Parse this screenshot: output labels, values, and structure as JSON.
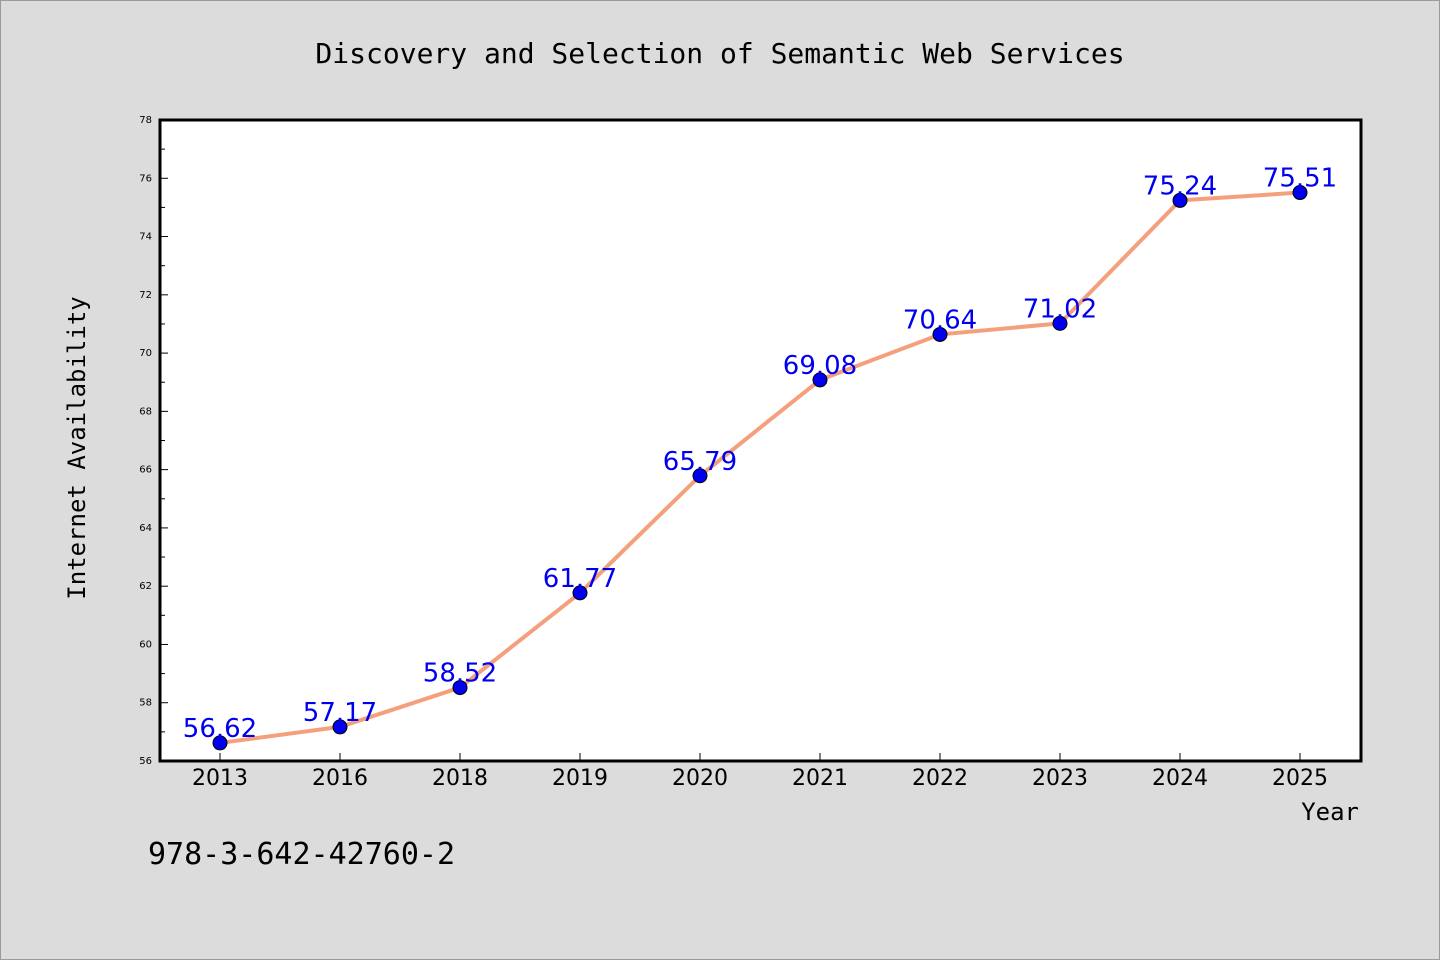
{
  "chart_data": {
    "type": "line",
    "title": "Discovery and Selection of Semantic Web Services",
    "xlabel": "Year",
    "ylabel": "Internet Availability",
    "categories": [
      "2013",
      "2016",
      "2018",
      "2019",
      "2020",
      "2021",
      "2022",
      "2023",
      "2024",
      "2025"
    ],
    "series": [
      {
        "values": [
          56.62,
          57.17,
          58.52,
          61.77,
          65.79,
          69.08,
          70.64,
          71.02,
          75.24,
          75.51
        ]
      }
    ],
    "data_labels": [
      "56.62",
      "57.17",
      "58.52",
      "61.77",
      "65.79",
      "69.08",
      "70.64",
      "71.02",
      "75.24",
      "75.51"
    ],
    "ylim": [
      56,
      78
    ],
    "yticks": [
      56,
      58,
      60,
      62,
      64,
      66,
      68,
      70,
      72,
      74,
      76,
      78
    ],
    "grid": false,
    "line_color": "#f4a07c",
    "marker_color": "#0000ee",
    "label_color": "#0000ee",
    "background_color": "#dcdcdc",
    "plot_background": "#ffffff"
  },
  "footer_text": "978-3-642-42760-2"
}
